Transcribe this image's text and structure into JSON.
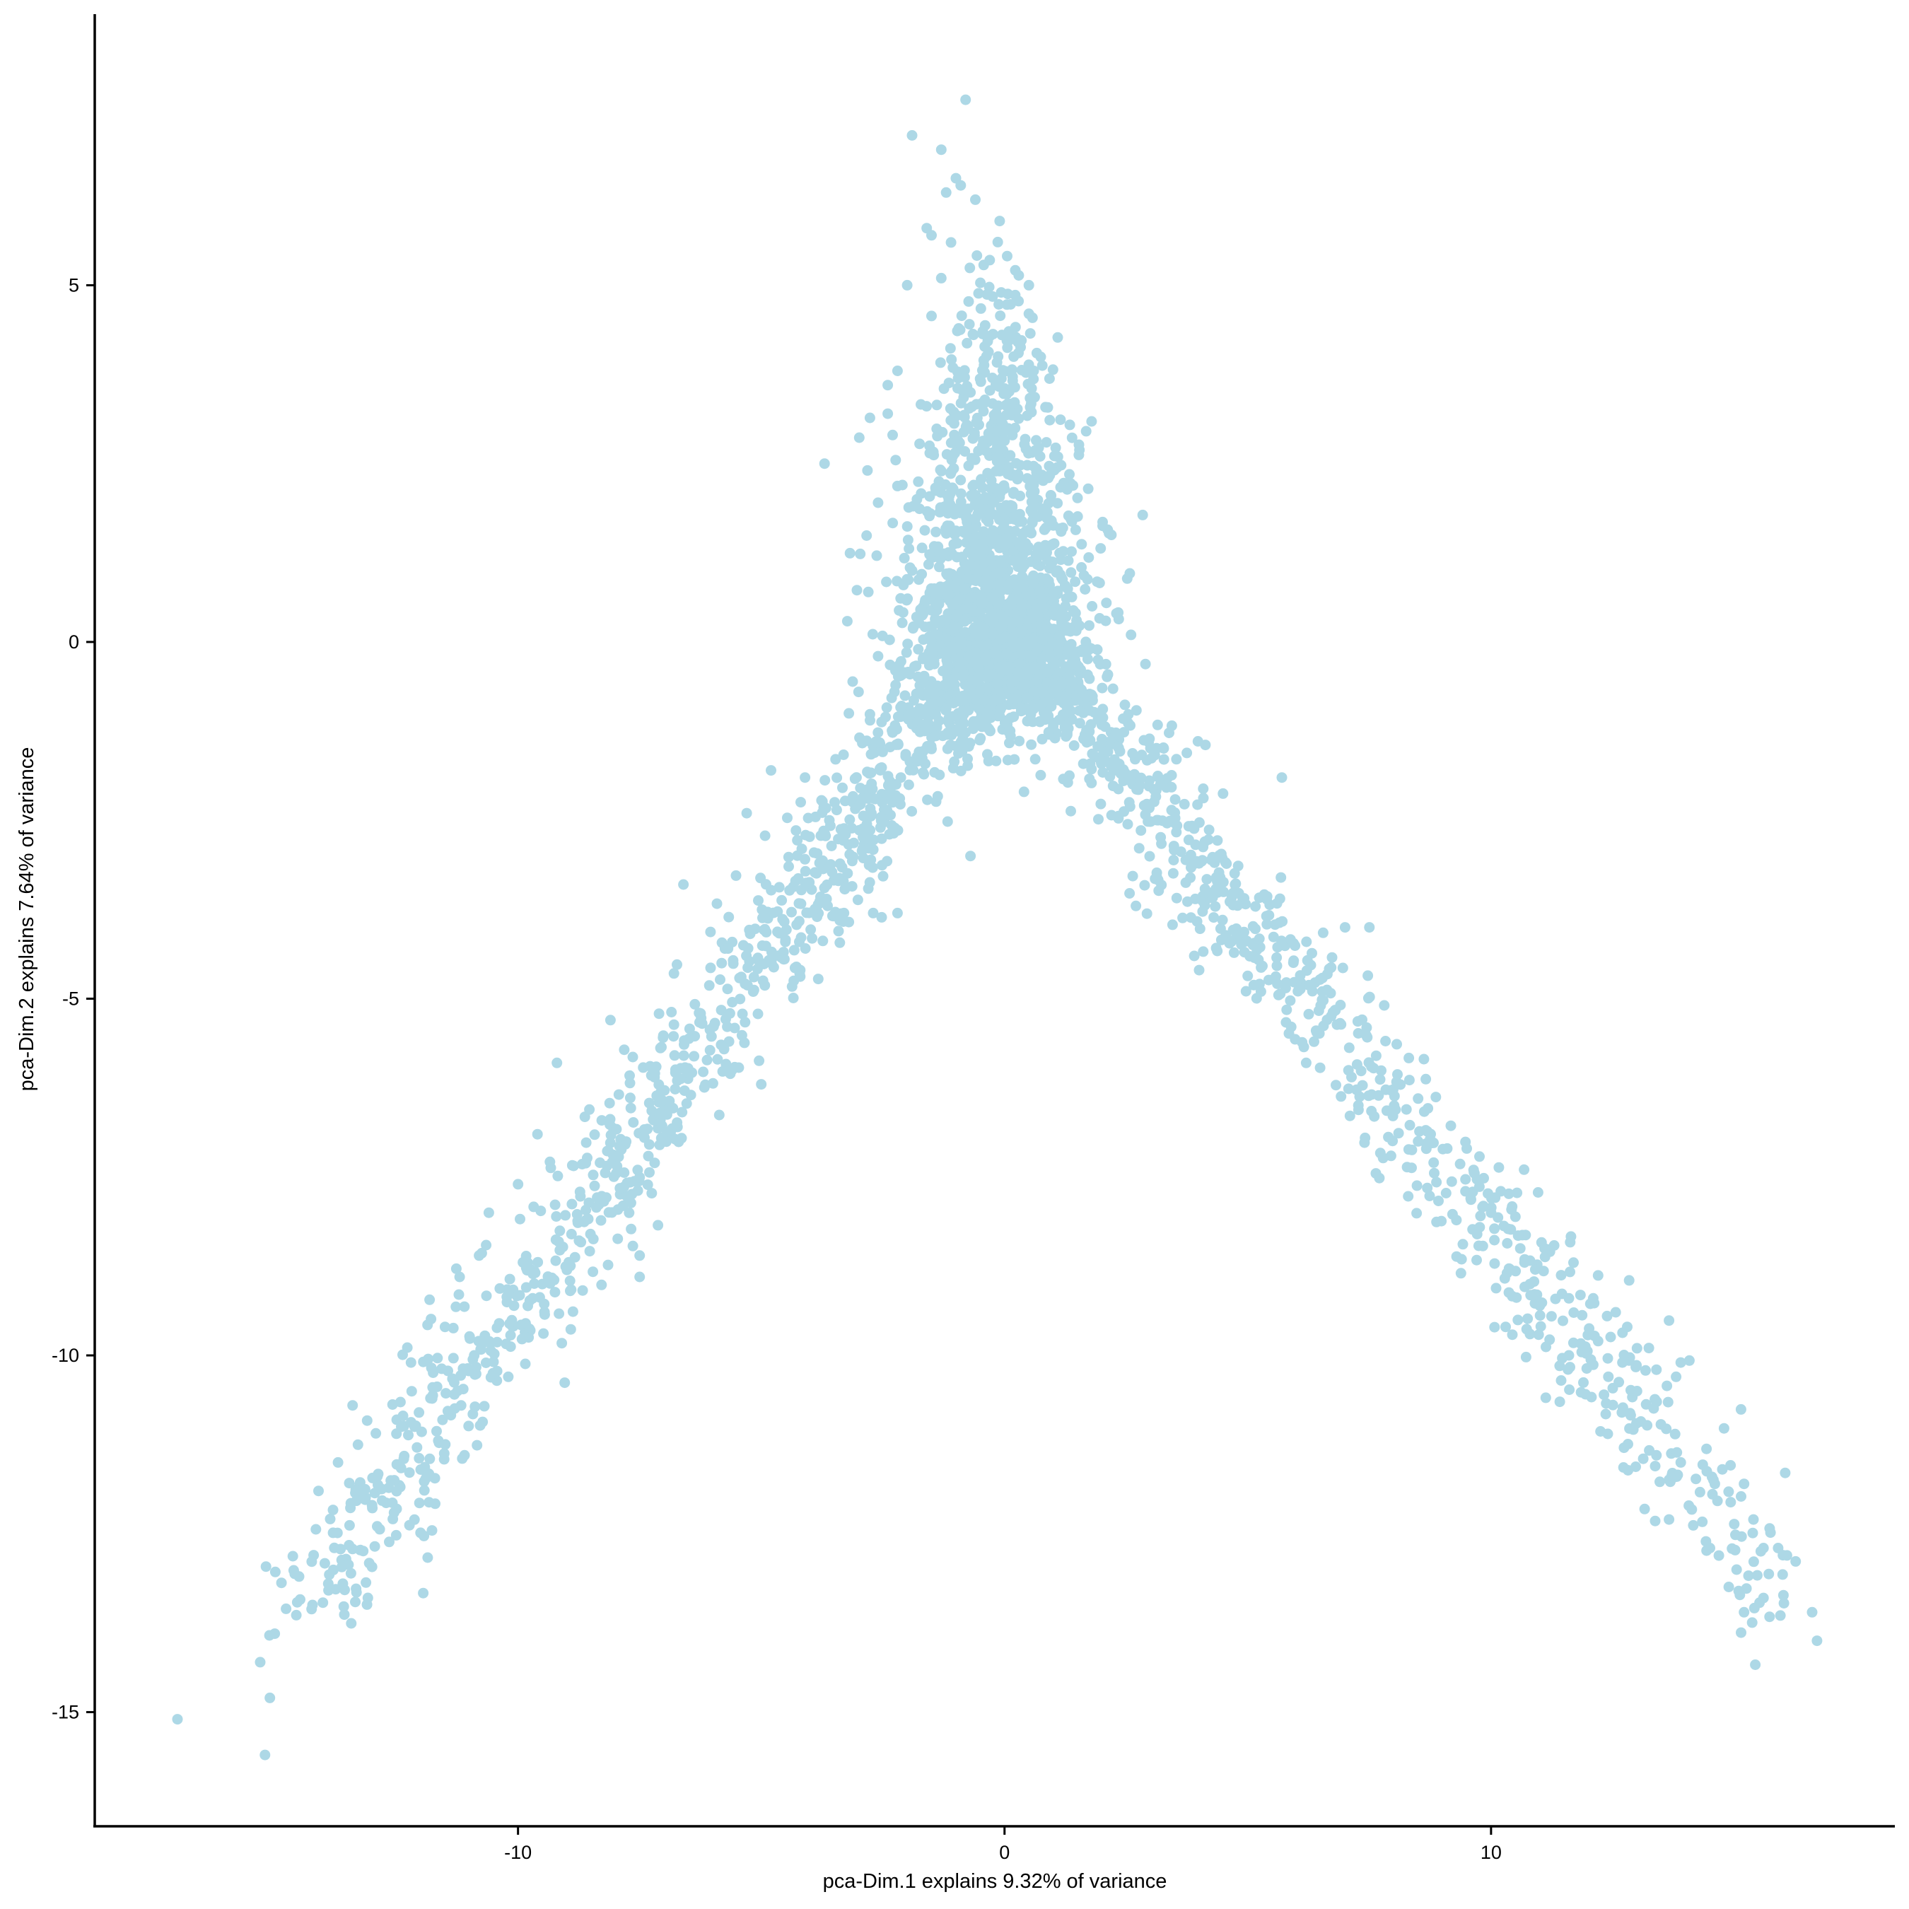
{
  "chart_data": {
    "type": "scatter",
    "title": "",
    "xlabel": "pca-Dim.1 explains 9.32% of variance",
    "ylabel": "pca-Dim.2 explains 7.64% of variance",
    "xlim": [
      -18.7,
      18.3
    ],
    "ylim": [
      -16.6,
      8.8
    ],
    "x_ticks": [
      -10,
      0,
      10
    ],
    "x_tick_labels": [
      "-10",
      "0",
      "10"
    ],
    "y_ticks": [
      5,
      0,
      -5,
      -10,
      -15
    ],
    "y_tick_labels": [
      "5",
      "0",
      "-5",
      "-10",
      "-15"
    ],
    "grid": false,
    "legend": "none",
    "point_color": "#add8e6",
    "axis_color": "#000000",
    "series": [
      {
        "points": [
          [
            -0.8,
            7.6
          ],
          [
            -1.9,
            7.1
          ],
          [
            -1.3,
            6.9
          ],
          [
            -1.0,
            6.5
          ],
          [
            -0.9,
            6.4
          ],
          [
            -1.2,
            6.3
          ],
          [
            -0.6,
            6.2
          ],
          [
            -0.1,
            5.9
          ],
          [
            -1.6,
            5.8
          ],
          [
            -1.5,
            5.7
          ],
          [
            -1.1,
            5.6
          ],
          [
            -2.0,
            5.0
          ],
          [
            -1.3,
            5.1
          ],
          [
            0.5,
            5.0
          ],
          [
            0.5,
            4.6
          ],
          [
            -2.2,
            3.8
          ],
          [
            -2.4,
            3.6
          ],
          [
            0.6,
            3.8
          ],
          [
            -2.4,
            3.2
          ],
          [
            -2.3,
            2.9
          ],
          [
            -3.7,
            2.5
          ],
          [
            0.9,
            2.3
          ],
          [
            -2.1,
            2.2
          ],
          [
            -1.8,
            2.0
          ],
          [
            1.2,
            1.6
          ],
          [
            -1.9,
            1.0
          ],
          [
            -2.8,
            0.7
          ],
          [
            1.8,
            0.5
          ],
          [
            2.3,
            0.4
          ],
          [
            2.6,
            0.1
          ],
          [
            -2.6,
            -0.2
          ],
          [
            -3.0,
            -0.7
          ],
          [
            -3.2,
            -1.0
          ],
          [
            -1.5,
            -1.5
          ],
          [
            0.4,
            -2.1
          ],
          [
            -0.7,
            -3.0
          ],
          [
            -6.6,
            -3.4
          ],
          [
            -4.1,
            -1.9
          ],
          [
            -5.3,
            -2.4
          ],
          [
            -2.2,
            -3.8
          ],
          [
            -2.7,
            -3.8
          ],
          [
            -3.3,
            -3.8
          ],
          [
            -5.6,
            -6.0
          ],
          [
            -5.0,
            -6.2
          ],
          [
            -8.1,
            -5.3
          ],
          [
            -7.5,
            -8.6
          ],
          [
            -7.5,
            -8.9
          ],
          [
            -9.2,
            -5.9
          ],
          [
            -9.6,
            -6.9
          ],
          [
            -10.6,
            -8.0
          ],
          [
            -10.0,
            -7.6
          ],
          [
            -11.2,
            -8.9
          ],
          [
            -11.5,
            -9.6
          ],
          [
            -10.9,
            -10.0
          ],
          [
            -10.2,
            -10.3
          ],
          [
            -12.2,
            -10.1
          ],
          [
            -11.8,
            -10.6
          ],
          [
            -12.0,
            -11.6
          ],
          [
            -11.1,
            -11.4
          ],
          [
            -12.4,
            -11.0
          ],
          [
            -13.4,
            -10.7
          ],
          [
            -13.7,
            -11.5
          ],
          [
            -13.3,
            -11.9
          ],
          [
            -13.0,
            -12.1
          ],
          [
            -14.1,
            -11.9
          ],
          [
            -14.5,
            -13.1
          ],
          [
            -14.2,
            -12.8
          ],
          [
            -13.6,
            -13.2
          ],
          [
            -13.9,
            -13.2
          ],
          [
            -15.0,
            -13.9
          ],
          [
            -15.3,
            -14.3
          ],
          [
            -15.1,
            -14.8
          ],
          [
            -17.0,
            -15.1
          ],
          [
            -15.2,
            -15.6
          ],
          [
            -10.8,
            -8.6
          ],
          [
            -9.5,
            -9.0
          ],
          [
            -9.7,
            -9.2
          ],
          [
            -8.9,
            -8.3
          ],
          [
            -4.8,
            -1.8
          ],
          [
            -3.6,
            -2.5
          ],
          [
            -2.4,
            -2.2
          ],
          [
            -4.2,
            -4.6
          ],
          [
            2.7,
            -3.7
          ],
          [
            3.2,
            -2.0
          ],
          [
            3.9,
            -4.4
          ],
          [
            4.0,
            -4.6
          ],
          [
            5.7,
            -1.9
          ],
          [
            6.2,
            -5.9
          ],
          [
            7.5,
            -4.0
          ],
          [
            7.0,
            -4.0
          ],
          [
            8.5,
            -6.4
          ],
          [
            8.5,
            -7.0
          ],
          [
            9.5,
            -7.1
          ],
          [
            10.2,
            -7.7
          ],
          [
            10.0,
            -8.0
          ],
          [
            10.6,
            -8.5
          ],
          [
            10.8,
            -9.0
          ],
          [
            11.1,
            -8.5
          ],
          [
            11.6,
            -9.2
          ],
          [
            11.7,
            -9.4
          ],
          [
            10.3,
            -9.6
          ],
          [
            10.8,
            -9.7
          ],
          [
            11.6,
            -10.0
          ],
          [
            12.1,
            -9.2
          ],
          [
            12.8,
            -9.6
          ],
          [
            12.2,
            -9.8
          ],
          [
            12.7,
            -10.1
          ],
          [
            13.0,
            -9.9
          ],
          [
            13.4,
            -10.2
          ],
          [
            13.0,
            -10.5
          ],
          [
            13.9,
            -10.1
          ],
          [
            12.4,
            -11.1
          ],
          [
            13.4,
            -11.4
          ],
          [
            13.9,
            -11.5
          ],
          [
            14.6,
            -11.8
          ],
          [
            15.2,
            -11.8
          ],
          [
            14.5,
            -12.7
          ],
          [
            15.6,
            -12.7
          ],
          [
            15.9,
            -12.7
          ],
          [
            16.0,
            -12.8
          ],
          [
            15.6,
            -13.4
          ],
          [
            15.2,
            -13.6
          ],
          [
            16.6,
            -13.6
          ],
          [
            16.7,
            -14.0
          ]
        ]
      }
    ]
  }
}
